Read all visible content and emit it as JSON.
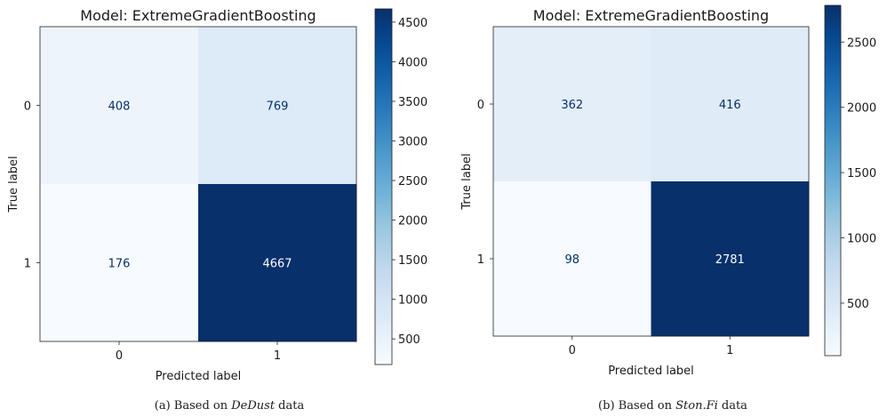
{
  "chart_data": [
    {
      "type": "heatmap",
      "title": "Model: ExtremeGradientBoosting",
      "xlabel": "Predicted label",
      "ylabel": "True label",
      "x_categories": [
        "0",
        "1"
      ],
      "y_categories": [
        "0",
        "1"
      ],
      "values": [
        [
          408,
          769
        ],
        [
          176,
          4667
        ]
      ],
      "colorbar": {
        "range": [
          176,
          4667
        ],
        "ticks": [
          500,
          1000,
          1500,
          2000,
          2500,
          3000,
          3500,
          4000,
          4500
        ]
      },
      "colormap": "Blues",
      "caption": {
        "prefix": "(a) Based on ",
        "emph": "DeDust",
        "suffix": " data"
      }
    },
    {
      "type": "heatmap",
      "title": "Model: ExtremeGradientBoosting",
      "xlabel": "Predicted label",
      "ylabel": "True label",
      "x_categories": [
        "0",
        "1"
      ],
      "y_categories": [
        "0",
        "1"
      ],
      "values": [
        [
          362,
          416
        ],
        [
          98,
          2781
        ]
      ],
      "colorbar": {
        "range": [
          98,
          2781
        ],
        "ticks": [
          500,
          1000,
          1500,
          2000,
          2500
        ]
      },
      "colormap": "Blues",
      "caption": {
        "prefix": "(b) Based on ",
        "emph": "Ston.Fi",
        "suffix": " data"
      }
    }
  ]
}
